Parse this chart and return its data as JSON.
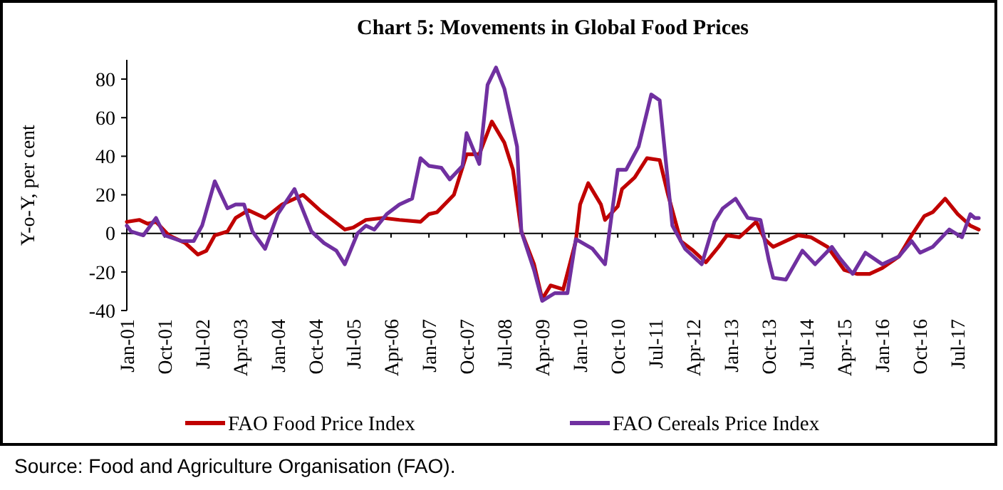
{
  "chart_data": {
    "type": "line",
    "title": "Chart 5: Movements in Global Food Prices",
    "ylabel": "Y-o-Y, per cent",
    "annotations": [
      "Source: Food and Agriculture Organisation (FAO)."
    ],
    "xlim": [
      "2001-01",
      "2017-12"
    ],
    "xticks": [
      {
        "value": "2001-01",
        "label": "Jan-01"
      },
      {
        "value": "2001-10",
        "label": "Oct-01"
      },
      {
        "value": "2002-07",
        "label": "Jul-02"
      },
      {
        "value": "2003-04",
        "label": "Apr-03"
      },
      {
        "value": "2004-01",
        "label": "Jan-04"
      },
      {
        "value": "2004-10",
        "label": "Oct-04"
      },
      {
        "value": "2005-07",
        "label": "Jul-05"
      },
      {
        "value": "2006-04",
        "label": "Apr-06"
      },
      {
        "value": "2007-01",
        "label": "Jan-07"
      },
      {
        "value": "2007-10",
        "label": "Oct-07"
      },
      {
        "value": "2008-07",
        "label": "Jul-08"
      },
      {
        "value": "2009-04",
        "label": "Apr-09"
      },
      {
        "value": "2010-01",
        "label": "Jan-10"
      },
      {
        "value": "2010-10",
        "label": "Oct-10"
      },
      {
        "value": "2011-07",
        "label": "Jul-11"
      },
      {
        "value": "2012-04",
        "label": "Apr-12"
      },
      {
        "value": "2013-01",
        "label": "Jan-13"
      },
      {
        "value": "2013-10",
        "label": "Oct-13"
      },
      {
        "value": "2014-07",
        "label": "Jul-14"
      },
      {
        "value": "2015-04",
        "label": "Apr-15"
      },
      {
        "value": "2016-01",
        "label": "Jan-16"
      },
      {
        "value": "2016-10",
        "label": "Oct-16"
      },
      {
        "value": "2017-07",
        "label": "Jul-17"
      }
    ],
    "ylim": [
      -40,
      90
    ],
    "yticks": [
      -40,
      -20,
      0,
      20,
      40,
      60,
      80
    ],
    "legend": "bottom",
    "line_style": "solid",
    "series": [
      {
        "name": "FAO Food Price Index",
        "color": "#c00000",
        "x": [
          "2001-01",
          "2001-04",
          "2001-06",
          "2001-08",
          "2001-11",
          "2002-03",
          "2002-06",
          "2002-08",
          "2002-10",
          "2003-01",
          "2003-03",
          "2003-06",
          "2003-10",
          "2004-02",
          "2004-07",
          "2004-11",
          "2005-05",
          "2005-07",
          "2005-10",
          "2006-02",
          "2006-06",
          "2006-11",
          "2007-01",
          "2007-03",
          "2007-07",
          "2007-10",
          "2008-01",
          "2008-04",
          "2008-07",
          "2008-09",
          "2008-11",
          "2009-02",
          "2009-04",
          "2009-06",
          "2009-09",
          "2009-12",
          "2010-01",
          "2010-03",
          "2010-06",
          "2010-07",
          "2010-10",
          "2010-11",
          "2011-02",
          "2011-05",
          "2011-08",
          "2011-10",
          "2012-01",
          "2012-04",
          "2012-07",
          "2012-10",
          "2012-12",
          "2013-03",
          "2013-07",
          "2013-09",
          "2013-11",
          "2014-03",
          "2014-05",
          "2014-08",
          "2014-12",
          "2015-04",
          "2015-07",
          "2015-10",
          "2016-01",
          "2016-05",
          "2016-08",
          "2016-11",
          "2017-01",
          "2017-04",
          "2017-07",
          "2017-10",
          "2017-12"
        ],
        "values": [
          6,
          7,
          5,
          6,
          -1,
          -5,
          -11,
          -9,
          -1,
          1,
          8,
          12,
          8,
          15,
          20,
          12,
          2,
          3,
          7,
          8,
          7,
          6,
          10,
          11,
          20,
          41,
          41,
          58,
          47,
          33,
          1,
          -16,
          -34,
          -27,
          -29,
          -4,
          15,
          26,
          15,
          7,
          14,
          23,
          29,
          39,
          38,
          20,
          -4,
          -9,
          -15,
          -7,
          -1,
          -2,
          6,
          -3,
          -7,
          -3,
          -1,
          -2,
          -7,
          -19,
          -21,
          -21,
          -18,
          -12,
          -1,
          9,
          11,
          18,
          10,
          4,
          2
        ]
      },
      {
        "name": "FAO Cereals Price Index",
        "color": "#7030a0",
        "x": [
          "2001-01",
          "2001-02",
          "2001-05",
          "2001-08",
          "2001-10",
          "2002-02",
          "2002-05",
          "2002-07",
          "2002-10",
          "2003-01",
          "2003-03",
          "2003-05",
          "2003-07",
          "2003-10",
          "2004-01",
          "2004-05",
          "2004-09",
          "2004-12",
          "2005-03",
          "2005-05",
          "2005-08",
          "2005-10",
          "2005-12",
          "2006-03",
          "2006-06",
          "2006-09",
          "2006-11",
          "2007-01",
          "2007-04",
          "2007-06",
          "2007-09",
          "2007-10",
          "2008-01",
          "2008-03",
          "2008-05",
          "2008-07",
          "2008-10",
          "2008-11",
          "2009-02",
          "2009-04",
          "2009-07",
          "2009-10",
          "2009-12",
          "2010-04",
          "2010-07",
          "2010-10",
          "2010-12",
          "2011-03",
          "2011-06",
          "2011-08",
          "2011-11",
          "2012-02",
          "2012-04",
          "2012-06",
          "2012-09",
          "2012-11",
          "2013-02",
          "2013-05",
          "2013-08",
          "2013-10",
          "2013-11",
          "2014-02",
          "2014-06",
          "2014-09",
          "2015-01",
          "2015-03",
          "2015-06",
          "2015-09",
          "2016-01",
          "2016-05",
          "2016-08",
          "2016-10",
          "2017-01",
          "2017-05",
          "2017-08",
          "2017-10",
          "2017-11",
          "2017-12"
        ],
        "values": [
          4,
          1,
          -1,
          8,
          -1,
          -4,
          -4,
          4,
          27,
          13,
          15,
          15,
          1,
          -8,
          10,
          23,
          1,
          -5,
          -9,
          -16,
          0,
          4,
          2,
          10,
          15,
          18,
          39,
          35,
          34,
          28,
          35,
          52,
          36,
          77,
          86,
          75,
          45,
          1,
          -19,
          -35,
          -31,
          -31,
          -3,
          -8,
          -16,
          33,
          33,
          45,
          72,
          69,
          4,
          -8,
          -12,
          -16,
          6,
          13,
          18,
          8,
          7,
          -14,
          -23,
          -24,
          -9,
          -16,
          -7,
          -13,
          -21,
          -10,
          -16,
          -12,
          -4,
          -10,
          -7,
          2,
          -2,
          10,
          8,
          8
        ]
      }
    ]
  }
}
